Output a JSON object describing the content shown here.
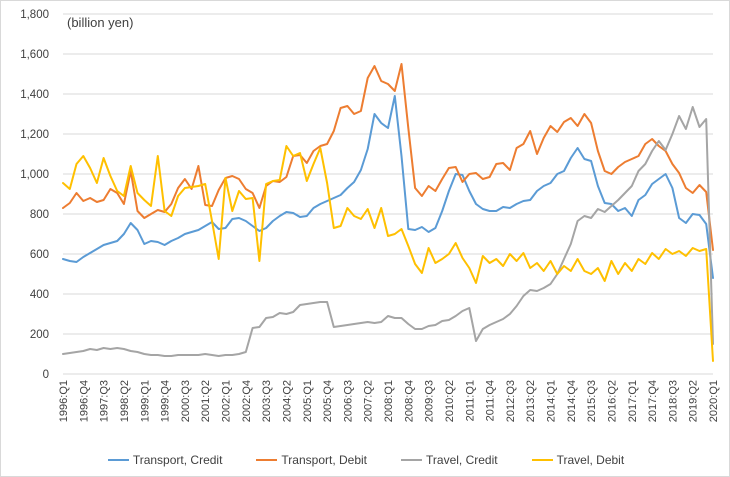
{
  "unit_note": "(billion yen)",
  "colors": {
    "grid": "#d9d9d9",
    "axis_text": "#404040",
    "chart_border": "#d9d9d9",
    "background": "#ffffff"
  },
  "chart_data": {
    "type": "line",
    "title": "",
    "xlabel": "",
    "ylabel": "(billion yen)",
    "ylim": [
      0,
      1800
    ],
    "ytick_step": 200,
    "xtick_every": 3,
    "grid": true,
    "legend_position": "bottom",
    "categories": [
      "1996:Q1",
      "1996:Q2",
      "1996:Q3",
      "1996:Q4",
      "1997:Q1",
      "1997:Q2",
      "1997:Q3",
      "1997:Q4",
      "1998:Q1",
      "1998:Q2",
      "1998:Q3",
      "1998:Q4",
      "1999:Q1",
      "1999:Q2",
      "1999:Q3",
      "1999:Q4",
      "2000:Q1",
      "2000:Q2",
      "2000:Q3",
      "2000:Q4",
      "2001:Q1",
      "2001:Q2",
      "2001:Q3",
      "2001:Q4",
      "2002:Q1",
      "2002:Q2",
      "2002:Q3",
      "2002:Q4",
      "2003:Q1",
      "2003:Q2",
      "2003:Q3",
      "2003:Q4",
      "2004:Q1",
      "2004:Q2",
      "2004:Q3",
      "2004:Q4",
      "2005:Q1",
      "2005:Q2",
      "2005:Q3",
      "2005:Q4",
      "2006:Q1",
      "2006:Q2",
      "2006:Q3",
      "2006:Q4",
      "2007:Q1",
      "2007:Q2",
      "2007:Q3",
      "2007:Q4",
      "2008:Q1",
      "2008:Q2",
      "2008:Q3",
      "2008:Q4",
      "2009:Q1",
      "2009:Q2",
      "2009:Q3",
      "2009:Q4",
      "2010:Q1",
      "2010:Q2",
      "2010:Q3",
      "2010:Q4",
      "2011:Q1",
      "2011:Q2",
      "2011:Q3",
      "2011:Q4",
      "2012:Q1",
      "2012:Q2",
      "2012:Q3",
      "2012:Q4",
      "2013:Q1",
      "2013:Q2",
      "2013:Q3",
      "2013:Q4",
      "2014:Q1",
      "2014:Q2",
      "2014:Q3",
      "2014:Q4",
      "2015:Q1",
      "2015:Q2",
      "2015:Q3",
      "2015:Q4",
      "2016:Q1",
      "2016:Q2",
      "2016:Q3",
      "2016:Q4",
      "2017:Q1",
      "2017:Q2",
      "2017:Q3",
      "2017:Q4",
      "2018:Q1",
      "2018:Q2",
      "2018:Q3",
      "2018:Q4",
      "2019:Q1",
      "2019:Q2",
      "2019:Q3",
      "2019:Q4",
      "2020:Q1"
    ],
    "series": [
      {
        "name": "Transport, Credit",
        "color": "#5B9BD5",
        "values": [
          575,
          565,
          560,
          585,
          605,
          625,
          645,
          655,
          665,
          700,
          755,
          720,
          650,
          665,
          660,
          645,
          665,
          680,
          700,
          710,
          720,
          740,
          760,
          725,
          730,
          775,
          780,
          765,
          740,
          715,
          730,
          765,
          790,
          810,
          805,
          785,
          790,
          830,
          850,
          865,
          880,
          895,
          930,
          960,
          1020,
          1125,
          1300,
          1255,
          1230,
          1390,
          1090,
          725,
          720,
          735,
          710,
          730,
          815,
          915,
          1000,
          995,
          915,
          850,
          825,
          815,
          815,
          835,
          830,
          850,
          865,
          870,
          915,
          940,
          955,
          1000,
          1015,
          1080,
          1130,
          1075,
          1065,
          940,
          855,
          850,
          815,
          830,
          790,
          870,
          895,
          950,
          975,
          1000,
          930,
          780,
          755,
          800,
          795,
          750,
          480
        ]
      },
      {
        "name": "Transport, Debit",
        "color": "#ED7D31",
        "values": [
          830,
          855,
          905,
          865,
          880,
          860,
          870,
          925,
          905,
          850,
          1015,
          815,
          780,
          800,
          820,
          810,
          850,
          930,
          975,
          925,
          1040,
          845,
          840,
          920,
          980,
          990,
          975,
          925,
          905,
          830,
          940,
          965,
          960,
          985,
          1090,
          1095,
          1055,
          1115,
          1140,
          1150,
          1215,
          1330,
          1340,
          1300,
          1315,
          1480,
          1540,
          1465,
          1450,
          1415,
          1550,
          1230,
          930,
          890,
          940,
          915,
          975,
          1030,
          1035,
          960,
          1000,
          1005,
          975,
          985,
          1050,
          1055,
          1020,
          1130,
          1150,
          1215,
          1100,
          1180,
          1240,
          1210,
          1260,
          1280,
          1240,
          1300,
          1255,
          1115,
          1015,
          1000,
          1035,
          1060,
          1075,
          1090,
          1150,
          1175,
          1140,
          1115,
          1050,
          1005,
          930,
          905,
          945,
          910,
          620
        ]
      },
      {
        "name": "Travel, Credit",
        "color": "#A5A5A5",
        "values": [
          100,
          105,
          110,
          115,
          125,
          120,
          130,
          125,
          130,
          125,
          115,
          110,
          100,
          95,
          95,
          90,
          90,
          95,
          95,
          95,
          95,
          100,
          95,
          90,
          95,
          95,
          100,
          110,
          230,
          235,
          280,
          285,
          305,
          300,
          310,
          345,
          350,
          355,
          360,
          360,
          235,
          240,
          245,
          250,
          255,
          260,
          255,
          260,
          290,
          280,
          280,
          250,
          225,
          225,
          240,
          245,
          265,
          270,
          290,
          315,
          330,
          165,
          225,
          245,
          260,
          275,
          300,
          340,
          390,
          420,
          415,
          430,
          450,
          500,
          575,
          650,
          765,
          790,
          780,
          825,
          810,
          840,
          870,
          905,
          940,
          1015,
          1050,
          1115,
          1165,
          1120,
          1200,
          1290,
          1225,
          1335,
          1235,
          1275,
          150
        ]
      },
      {
        "name": "Travel, Debit",
        "color": "#FFC000",
        "values": [
          955,
          925,
          1050,
          1090,
          1030,
          955,
          1080,
          990,
          915,
          890,
          1040,
          905,
          870,
          840,
          1090,
          815,
          790,
          890,
          930,
          935,
          940,
          950,
          765,
          575,
          980,
          815,
          915,
          875,
          880,
          565,
          950,
          965,
          970,
          1140,
          1090,
          1105,
          965,
          1050,
          1130,
          955,
          730,
          740,
          830,
          790,
          775,
          825,
          730,
          830,
          690,
          700,
          725,
          640,
          550,
          505,
          630,
          555,
          575,
          600,
          655,
          580,
          530,
          455,
          590,
          555,
          575,
          540,
          600,
          565,
          605,
          530,
          555,
          515,
          565,
          500,
          540,
          515,
          575,
          515,
          500,
          530,
          465,
          565,
          500,
          555,
          515,
          575,
          550,
          605,
          575,
          625,
          600,
          615,
          590,
          630,
          615,
          625,
          65
        ]
      }
    ]
  }
}
